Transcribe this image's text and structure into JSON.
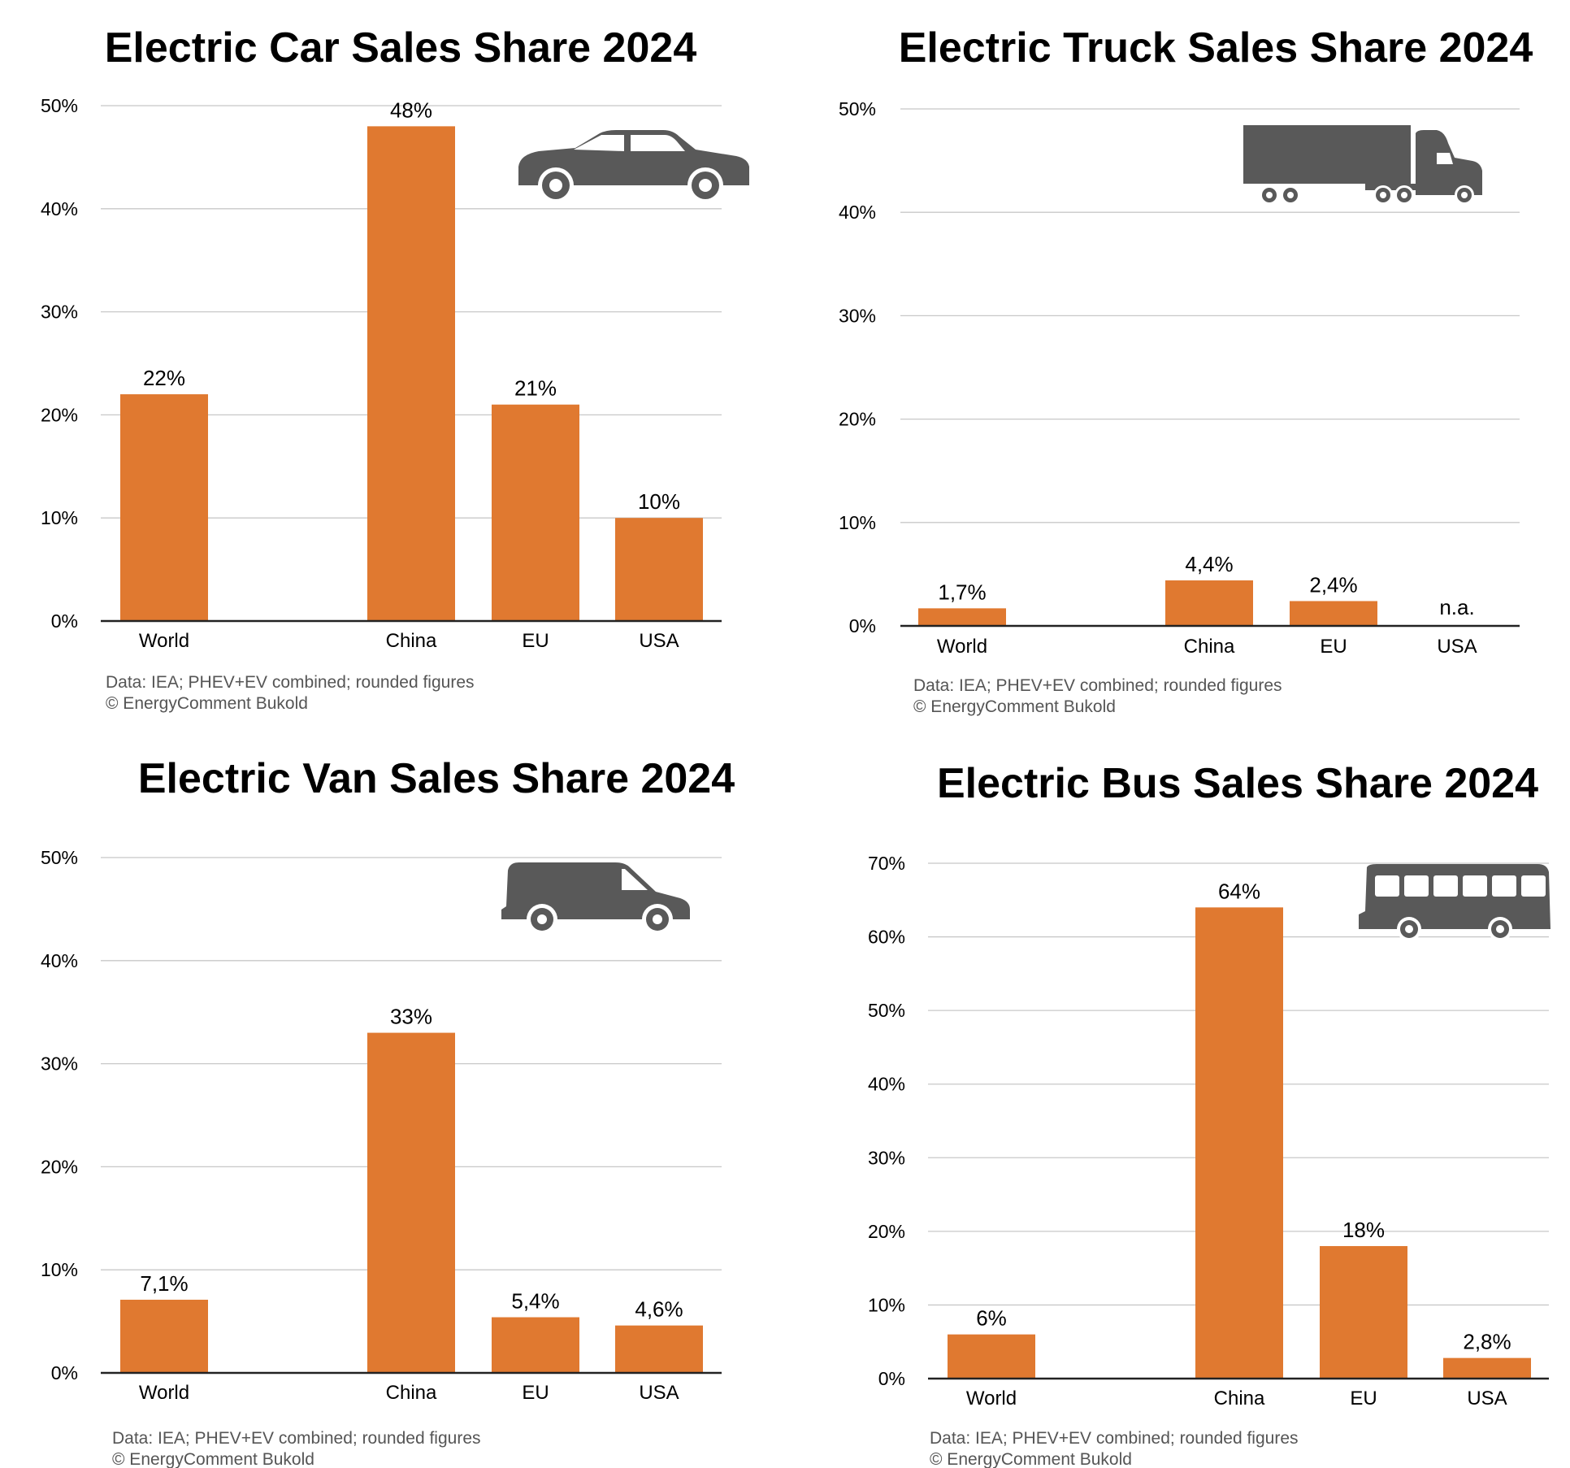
{
  "colors": {
    "bar": "#e07930",
    "icon": "#595959",
    "grid": "#c8c8c8",
    "source_text": "#555555"
  },
  "source": {
    "line1": "Data: IEA; PHEV+EV combined; rounded figures",
    "line2": "© EnergyComment Bukold"
  },
  "chart_data": [
    {
      "id": "car",
      "type": "bar",
      "title": "Electric Car Sales Share 2024",
      "icon": "car-icon",
      "categories": [
        "World",
        "China",
        "EU",
        "USA"
      ],
      "values": [
        22,
        48,
        21,
        10
      ],
      "value_labels": [
        "22%",
        "48%",
        "21%",
        "10%"
      ],
      "y_ticks": [
        "0%",
        "10%",
        "20%",
        "30%",
        "40%",
        "50%"
      ],
      "ylim": [
        0,
        50
      ],
      "grid": true
    },
    {
      "id": "truck",
      "type": "bar",
      "title": "Electric Truck Sales Share 2024",
      "icon": "truck-icon",
      "categories": [
        "World",
        "China",
        "EU",
        "USA"
      ],
      "values": [
        1.7,
        4.4,
        2.4,
        null
      ],
      "value_labels": [
        "1,7%",
        "4,4%",
        "2,4%",
        "n.a."
      ],
      "y_ticks": [
        "0%",
        "10%",
        "20%",
        "30%",
        "40%",
        "50%"
      ],
      "ylim": [
        0,
        50
      ],
      "grid": true
    },
    {
      "id": "van",
      "type": "bar",
      "title": "Electric Van Sales Share 2024",
      "icon": "van-icon",
      "categories": [
        "World",
        "China",
        "EU",
        "USA"
      ],
      "values": [
        7.1,
        33,
        5.4,
        4.6
      ],
      "value_labels": [
        "7,1%",
        "33%",
        "5,4%",
        "4,6%"
      ],
      "y_ticks": [
        "0%",
        "10%",
        "20%",
        "30%",
        "40%",
        "50%"
      ],
      "ylim": [
        0,
        50
      ],
      "grid": true
    },
    {
      "id": "bus",
      "type": "bar",
      "title": "Electric Bus Sales Share 2024",
      "icon": "bus-icon",
      "categories": [
        "World",
        "China",
        "EU",
        "USA"
      ],
      "values": [
        6,
        64,
        18,
        2.8
      ],
      "value_labels": [
        "6%",
        "64%",
        "18%",
        "2,8%"
      ],
      "y_ticks": [
        "0%",
        "10%",
        "20%",
        "30%",
        "40%",
        "50%",
        "60%",
        "70%"
      ],
      "ylim": [
        0,
        70
      ],
      "grid": true
    }
  ]
}
